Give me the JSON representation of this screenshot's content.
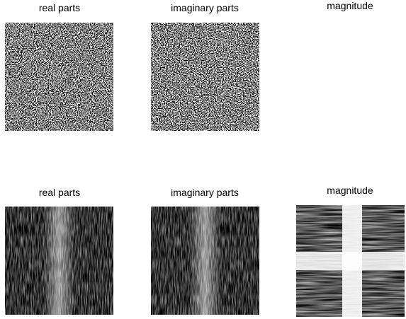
{
  "panels": [
    {
      "title": "real parts"
    },
    {
      "title": "imaginary parts"
    },
    {
      "title": "magnitude"
    },
    {
      "title": "real parts"
    },
    {
      "title": "imaginary parts"
    },
    {
      "title": "magnitude"
    }
  ]
}
